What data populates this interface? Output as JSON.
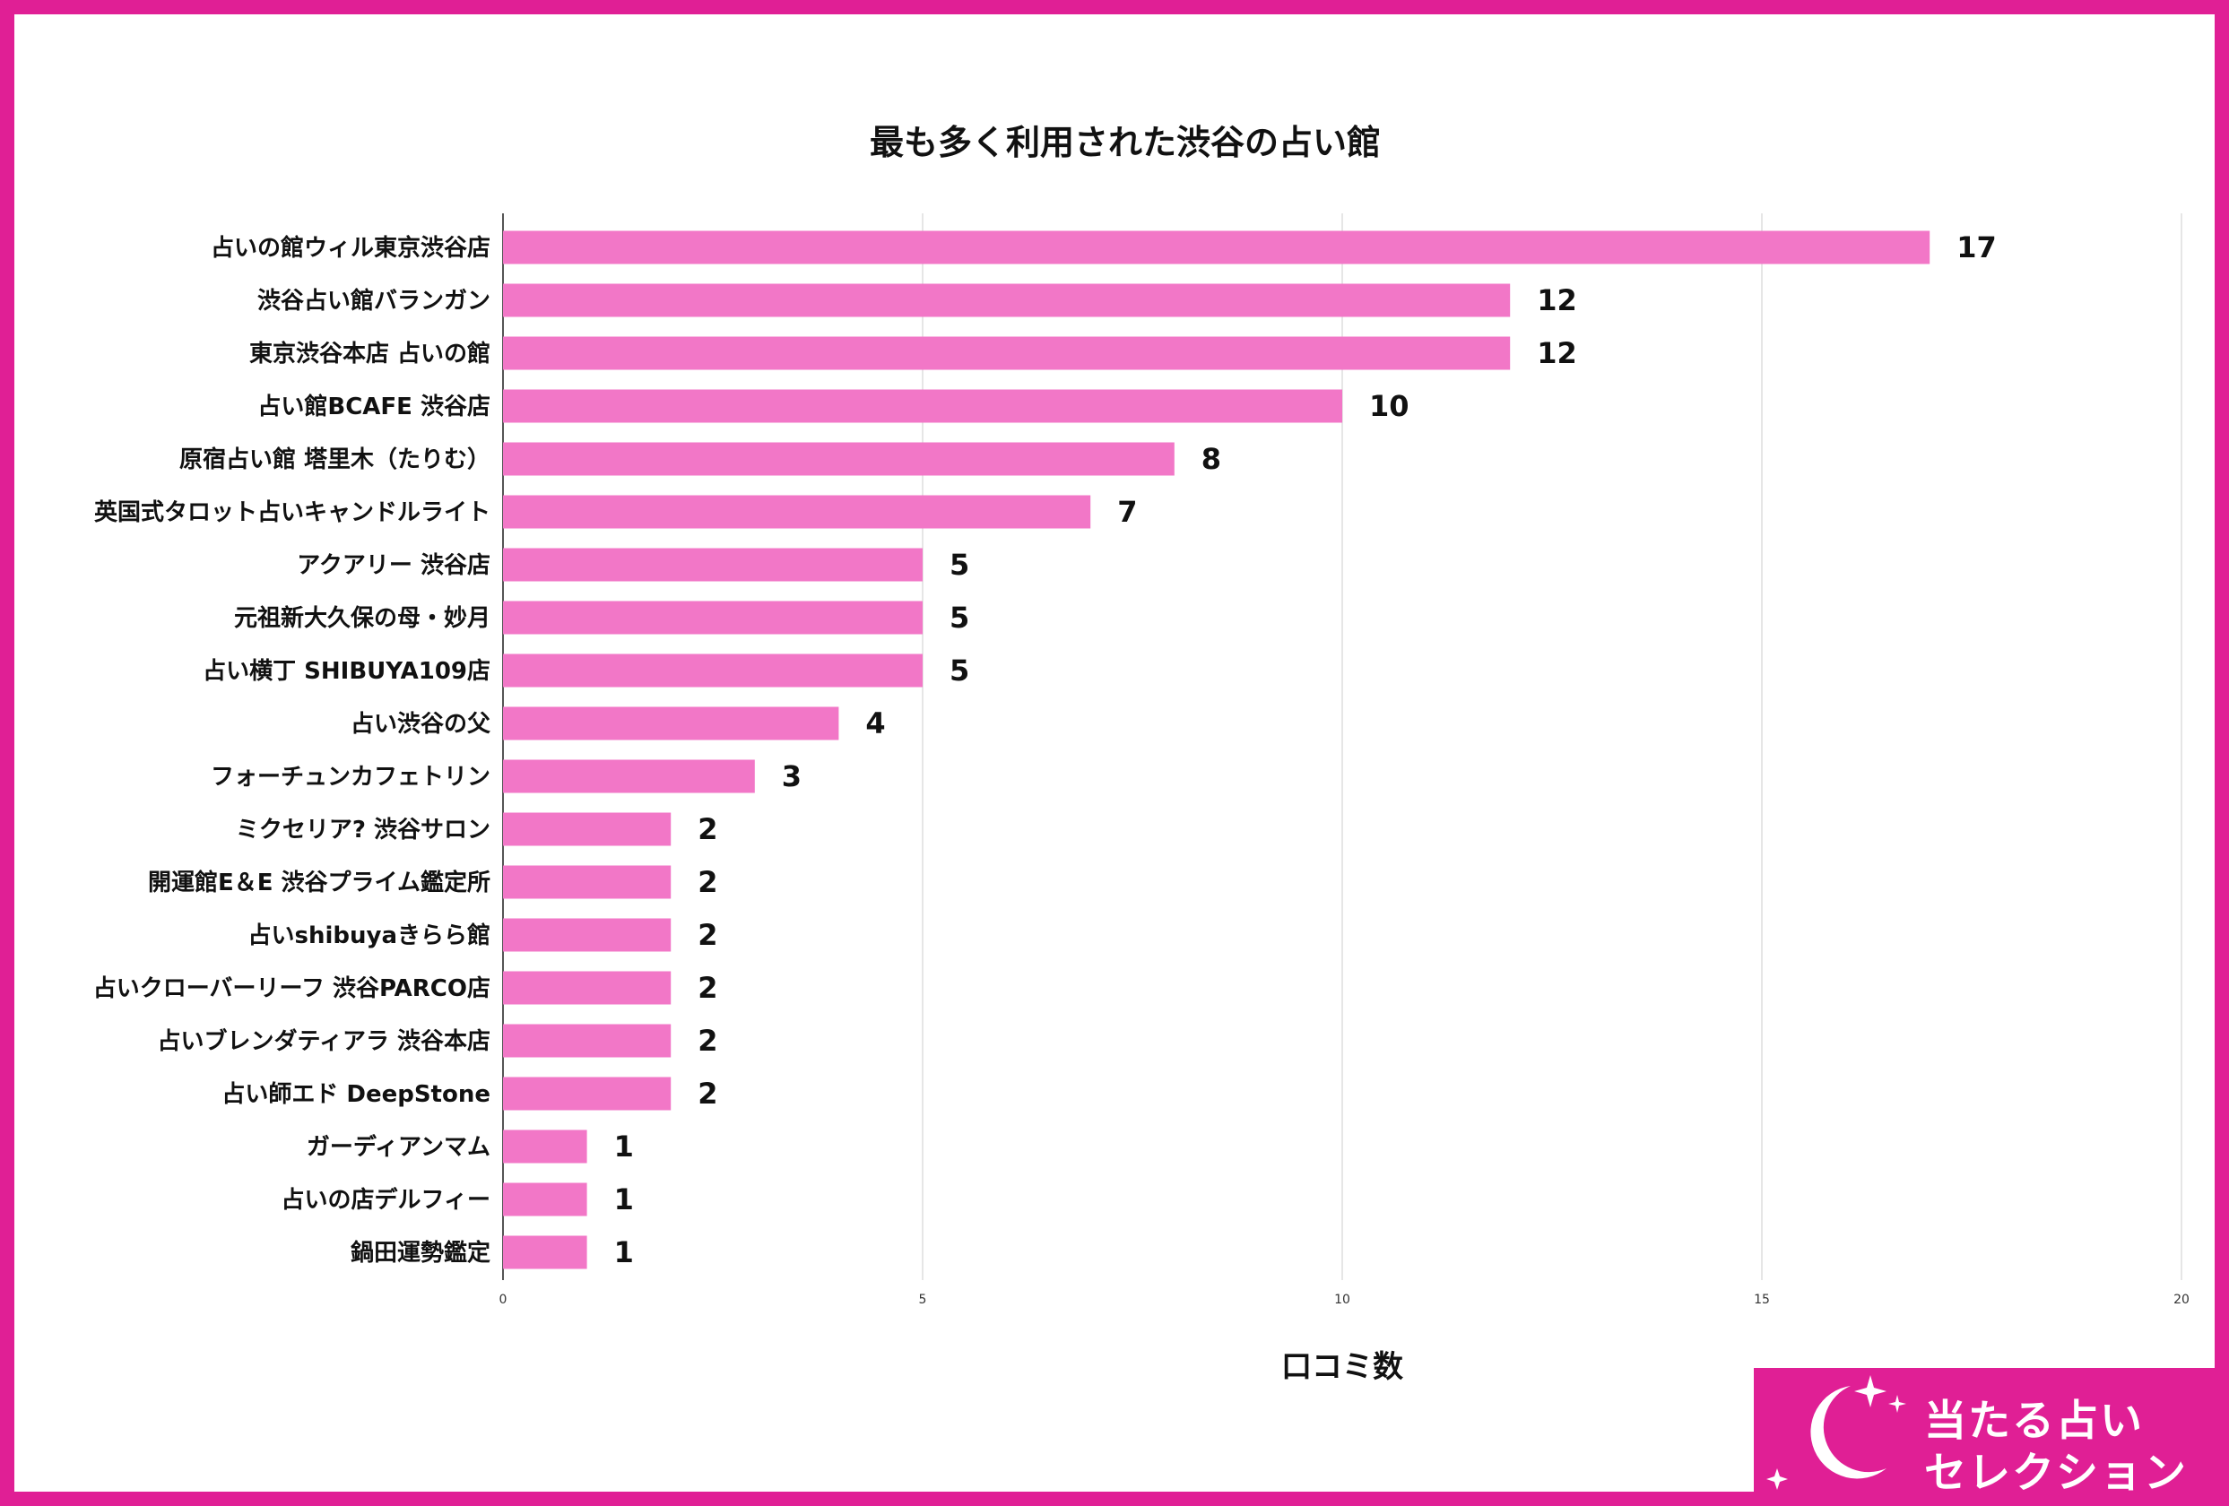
{
  "colors": {
    "border": "#e01f95",
    "bar": "#f277c7",
    "grid": "#dddddd",
    "text": "#111111"
  },
  "chart_data": {
    "type": "bar",
    "orientation": "horizontal",
    "title": "最も多く利用された渋谷の占い館",
    "xlabel": "口コミ数",
    "ylabel": "",
    "xlim": [
      0,
      20
    ],
    "x_ticks": [
      "0",
      "5",
      "10",
      "15",
      "20"
    ],
    "grid": true,
    "categories": [
      "占いの館ウィル東京渋谷店",
      "渋谷占い館バランガン",
      "東京渋谷本店 占いの館",
      "占い館BCAFE 渋谷店",
      "原宿占い館 塔里木（たりむ）",
      "英国式タロット占いキャンドルライト",
      "アクアリー 渋谷店",
      "元祖新大久保の母・妙月",
      "占い横丁 SHIBUYA109店",
      "占い渋谷の父",
      "フォーチュンカフェトリン",
      "ミクセリア? 渋谷サロン",
      "開運館E＆E 渋谷プライム鑑定所",
      "占いshibuyaきらら館",
      "占いクローバーリーフ 渋谷PARCO店",
      "占いブレンダティアラ 渋谷本店",
      "占い師エド DeepStone",
      "ガーディアンマム",
      "占いの店デルフィー",
      "鍋田運勢鑑定"
    ],
    "values": [
      17,
      12,
      12,
      10,
      8,
      7,
      5,
      5,
      5,
      4,
      3,
      2,
      2,
      2,
      2,
      2,
      2,
      1,
      1,
      1
    ],
    "value_labels": [
      "17",
      "12",
      "12",
      "10",
      "8",
      "7",
      "5",
      "5",
      "5",
      "4",
      "3",
      "2",
      "2",
      "2",
      "2",
      "2",
      "2",
      "1",
      "1",
      "1"
    ]
  },
  "logo": {
    "line1": "当たる占い",
    "line2": "セレクション",
    "icon": "crescent-moon-sparkle-icon"
  }
}
